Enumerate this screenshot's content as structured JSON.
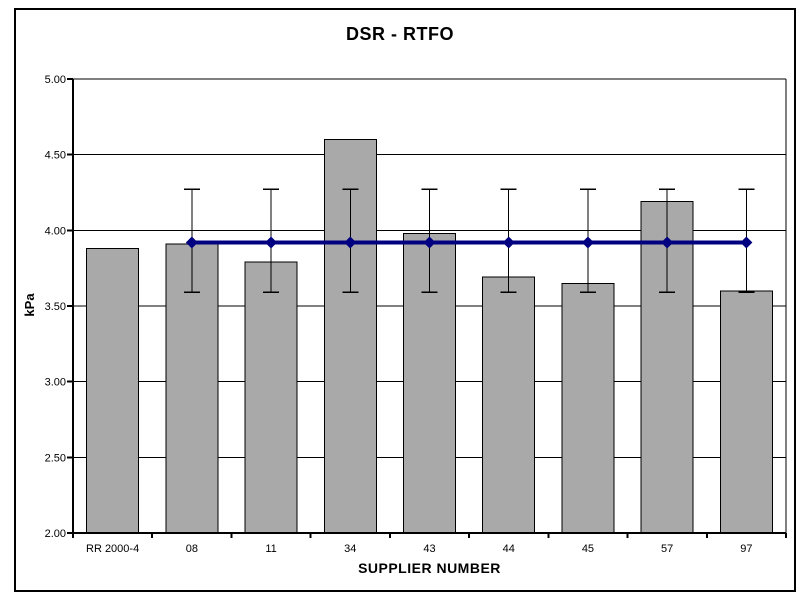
{
  "chart_data": {
    "type": "bar",
    "title": "DSR - RTFO",
    "xlabel": "SUPPLIER NUMBER",
    "ylabel": "kPa",
    "categories": [
      "RR 2000-4",
      "08",
      "11",
      "34",
      "43",
      "44",
      "45",
      "57",
      "97"
    ],
    "series": [
      {
        "name": "supplier-dsr-bars",
        "type": "bar",
        "color": "#a9a9a9",
        "values": [
          3.88,
          3.91,
          3.79,
          4.6,
          3.98,
          3.69,
          3.65,
          4.19,
          3.6
        ]
      },
      {
        "name": "reference-line",
        "type": "line",
        "color": "#000080",
        "values": [
          null,
          3.92,
          3.92,
          3.92,
          3.92,
          3.92,
          3.92,
          3.92,
          3.92
        ],
        "marker": "diamond",
        "error_bars": {
          "low": 3.59,
          "high": 4.27
        }
      }
    ],
    "ylim": [
      2.0,
      5.0
    ],
    "ytick_step": 0.5,
    "ytick_labels": [
      "5.00",
      "4.50",
      "4.00",
      "3.50",
      "3.00",
      "2.50",
      "2.00"
    ],
    "grid": "horizontal",
    "legend": "none",
    "colors": {
      "bar_fill": "#a9a9a9",
      "line_stroke": "#000080",
      "axis_stroke": "#000000",
      "background": "#ffffff"
    }
  }
}
